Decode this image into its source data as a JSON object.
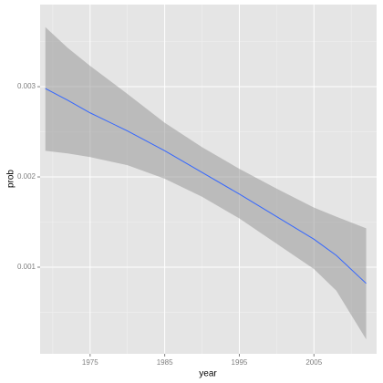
{
  "chart_data": {
    "type": "line",
    "x_label": "year",
    "y_label": "prob",
    "x": [
      1969,
      1972,
      1975,
      1980,
      1985,
      1990,
      1995,
      2000,
      2005,
      2008,
      2012
    ],
    "values": [
      0.00298,
      0.00285,
      0.00271,
      0.00251,
      0.00229,
      0.00205,
      0.00181,
      0.00156,
      0.00131,
      0.00113,
      0.00082
    ],
    "upper": [
      0.00366,
      0.00343,
      0.00323,
      0.00292,
      0.0026,
      0.00233,
      0.00209,
      0.00187,
      0.00166,
      0.00156,
      0.00143
    ],
    "lower": [
      0.00229,
      0.00226,
      0.00222,
      0.00213,
      0.00198,
      0.00178,
      0.00154,
      0.00126,
      0.00098,
      0.00074,
      0.0002
    ],
    "color": "#3366ff",
    "band_color": "#999999",
    "xlim": [
      1968.3,
      2013.4
    ],
    "xticks": [
      1975,
      1985,
      1995,
      2005
    ],
    "ylim": [
      4e-05,
      0.00391
    ],
    "yticks": [
      0.001,
      0.002,
      0.003
    ],
    "grid": true
  }
}
